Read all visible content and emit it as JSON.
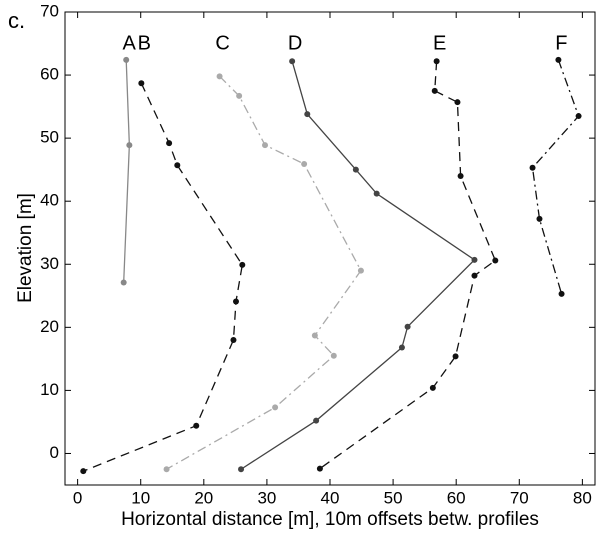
{
  "chart_data": {
    "type": "line",
    "panel_label": "c.",
    "x_label": "Horizontal distance [m], 10m offsets betw. profiles",
    "y_label": "Elevation [m]",
    "xlim": [
      -2,
      82
    ],
    "xticks": [
      0,
      10,
      20,
      30,
      40,
      50,
      60,
      70,
      80
    ],
    "ylim": [
      -5,
      70
    ],
    "yticks": [
      0,
      10,
      20,
      30,
      40,
      50,
      60,
      70
    ],
    "series": [
      {
        "name": "A",
        "color": "#888888",
        "dash": "solid",
        "x": [
          7.7,
          8.2,
          7.3
        ],
        "values": [
          62.4,
          48.9,
          27.1
        ]
      },
      {
        "name": "B",
        "color": "#111111",
        "dash": "dashed",
        "x": [
          10.1,
          14.5,
          15.8,
          26.1,
          25.1,
          24.7,
          18.8,
          0.9
        ],
        "values": [
          58.7,
          49.2,
          45.7,
          29.9,
          24.1,
          18.0,
          4.4,
          -2.8
        ]
      },
      {
        "name": "C",
        "color": "#aaaaaa",
        "dash": "dashdot",
        "x": [
          22.5,
          25.6,
          29.7,
          35.9,
          44.9,
          37.6,
          40.6,
          31.3,
          14.1
        ],
        "values": [
          59.8,
          56.7,
          48.9,
          45.9,
          29.0,
          18.7,
          15.5,
          7.3,
          -2.5
        ]
      },
      {
        "name": "D",
        "color": "#444444",
        "dash": "solid",
        "x": [
          34.0,
          36.4,
          44.1,
          47.4,
          62.9,
          52.3,
          51.4,
          37.8,
          25.9
        ],
        "values": [
          62.2,
          53.8,
          45.0,
          41.2,
          30.7,
          20.1,
          16.8,
          5.2,
          -2.5
        ]
      },
      {
        "name": "E",
        "color": "#111111",
        "dash": "dashed",
        "x": [
          56.9,
          56.6,
          60.2,
          60.7,
          66.2,
          62.9,
          59.9,
          56.3,
          38.4
        ],
        "values": [
          62.2,
          57.5,
          55.7,
          44.0,
          30.6,
          28.2,
          15.4,
          10.4,
          -2.4
        ]
      },
      {
        "name": "F",
        "color": "#111111",
        "dash": "dashdot",
        "x": [
          76.2,
          79.4,
          72.1,
          73.2,
          76.7
        ],
        "values": [
          62.4,
          53.5,
          45.3,
          37.2,
          25.3
        ]
      }
    ]
  }
}
